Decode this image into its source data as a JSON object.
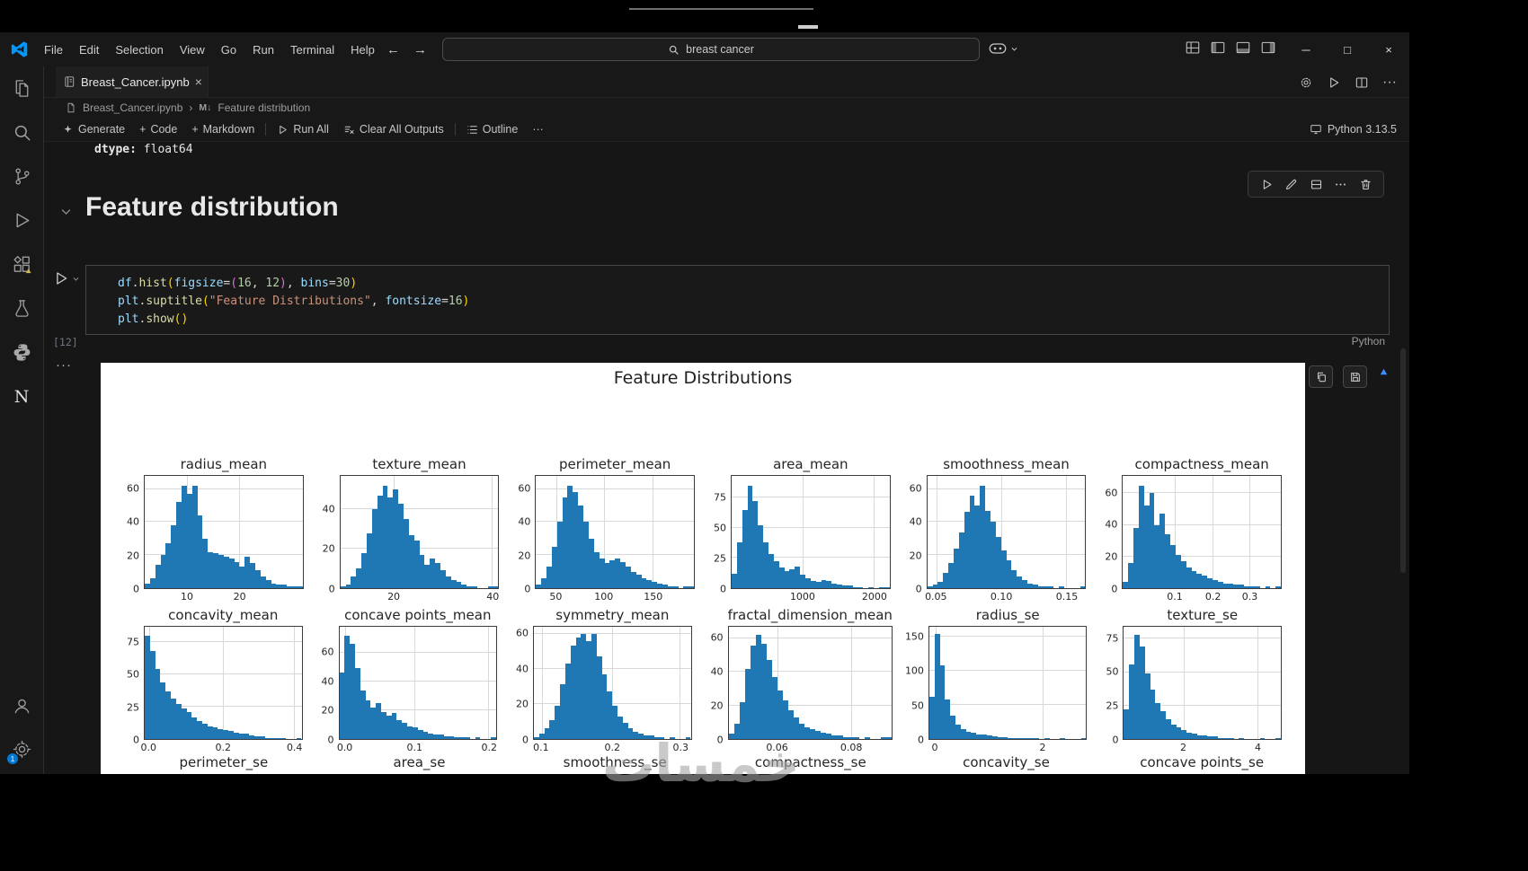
{
  "titlebar": {
    "menus": [
      "File",
      "Edit",
      "Selection",
      "View",
      "Go",
      "Run",
      "Terminal",
      "Help"
    ],
    "back": "←",
    "forward": "→",
    "search_value": "breast cancer",
    "window_controls": {
      "minimize": "─",
      "maximize": "□",
      "close": "×"
    }
  },
  "tabbar": {
    "tab_label": "Breast_Cancer.ipynb",
    "tab_close": "×",
    "more": "···"
  },
  "breadcrumb": {
    "file": "Breast_Cancer.ipynb",
    "separator": "›",
    "markdown_marker": "M↓",
    "section": "Feature distribution"
  },
  "notebook_toolbar": {
    "plus": "+",
    "generate": "Generate",
    "add_code": "Code",
    "add_markdown": "Markdown",
    "run_all": "Run All",
    "clear_outputs": "Clear All Outputs",
    "outline": "Outline",
    "more": "···",
    "kernel": "Python 3.13.5"
  },
  "previous_output": {
    "dtype_label": "dtype:",
    "dtype_value": " float64"
  },
  "markdown_cell": {
    "heading": "Feature distribution"
  },
  "code_cell": {
    "execution_count": "[12]",
    "language_label": "Python",
    "token_styles": {
      "v": "#9cdcfe",
      "f": "#dcdcaa",
      "n": "#b5cea8",
      "s": "#ce9178",
      "p": "#d4d4d4",
      "b1": "#ffd700",
      "b2": "#da70d6"
    },
    "lines": [
      [
        [
          "df",
          "v"
        ],
        [
          ".",
          "p"
        ],
        [
          "hist",
          "f"
        ],
        [
          "(",
          "b1"
        ],
        [
          "figsize",
          "v"
        ],
        [
          "=",
          "p"
        ],
        [
          "(",
          "b2"
        ],
        [
          "16",
          "n"
        ],
        [
          ", ",
          "p"
        ],
        [
          "12",
          "n"
        ],
        [
          ")",
          "b2"
        ],
        [
          ", ",
          "p"
        ],
        [
          "bins",
          "v"
        ],
        [
          "=",
          "p"
        ],
        [
          "30",
          "n"
        ],
        [
          ")",
          "b1"
        ]
      ],
      [
        [
          "plt",
          "v"
        ],
        [
          ".",
          "p"
        ],
        [
          "suptitle",
          "f"
        ],
        [
          "(",
          "b1"
        ],
        [
          "\"Feature Distributions\"",
          "s"
        ],
        [
          ", ",
          "p"
        ],
        [
          "fontsize",
          "v"
        ],
        [
          "=",
          "p"
        ],
        [
          "16",
          "n"
        ],
        [
          ")",
          "b1"
        ]
      ],
      [
        [
          "plt",
          "v"
        ],
        [
          ".",
          "p"
        ],
        [
          "show",
          "f"
        ],
        [
          "(",
          "b1"
        ],
        [
          ")",
          "b1"
        ]
      ]
    ]
  },
  "output": {
    "more": "···"
  },
  "watermark": "خمسات",
  "colors": {
    "accent_blue": "#0078d4",
    "histogram_bar": "#1f77b4",
    "editor_background": "#161616",
    "figure_background": "#ffffff"
  },
  "chart_data": {
    "type": "histogram",
    "title": "Feature Distributions",
    "grid": true,
    "bar_color": "#1f77b4",
    "layout": "6 columns x 2 full rows visible, third row cut off",
    "histograms": [
      {
        "title": "radius_mean",
        "ymax": 68,
        "yticks": [
          0,
          20,
          40,
          60
        ],
        "xticks": [
          {
            "label": "10",
            "pos": 0.27
          },
          {
            "label": "20",
            "pos": 0.6
          }
        ],
        "values": [
          3,
          6,
          14,
          20,
          27,
          38,
          52,
          62,
          57,
          62,
          44,
          30,
          22,
          21,
          20,
          19,
          18,
          16,
          13,
          19,
          15,
          11,
          7,
          5,
          3,
          2,
          2,
          1,
          1,
          1
        ]
      },
      {
        "title": "texture_mean",
        "ymax": 57,
        "yticks": [
          0,
          20,
          40
        ],
        "xticks": [
          {
            "label": "20",
            "pos": 0.34
          },
          {
            "label": "40",
            "pos": 0.96
          }
        ],
        "values": [
          1,
          2,
          6,
          10,
          18,
          28,
          40,
          47,
          52,
          46,
          50,
          43,
          35,
          27,
          24,
          17,
          12,
          15,
          13,
          9,
          6,
          4,
          3,
          2,
          1,
          1,
          0,
          0,
          1,
          1
        ]
      },
      {
        "title": "perimeter_mean",
        "ymax": 68,
        "yticks": [
          0,
          20,
          40,
          60
        ],
        "xticks": [
          {
            "label": "50",
            "pos": 0.13
          },
          {
            "label": "100",
            "pos": 0.43
          },
          {
            "label": "150",
            "pos": 0.74
          }
        ],
        "values": [
          2,
          6,
          13,
          25,
          40,
          55,
          62,
          58,
          50,
          40,
          30,
          22,
          18,
          15,
          17,
          18,
          16,
          13,
          10,
          8,
          6,
          5,
          4,
          3,
          2,
          1,
          1,
          0,
          1,
          1
        ]
      },
      {
        "title": "area_mean",
        "ymax": 93,
        "yticks": [
          0,
          25,
          50,
          75
        ],
        "xticks": [
          {
            "label": "1000",
            "pos": 0.45
          },
          {
            "label": "2000",
            "pos": 0.9
          }
        ],
        "values": [
          12,
          38,
          65,
          85,
          72,
          52,
          38,
          28,
          22,
          17,
          14,
          16,
          18,
          11,
          8,
          6,
          5,
          7,
          6,
          4,
          3,
          2,
          2,
          1,
          1,
          0,
          1,
          0,
          1,
          1
        ]
      },
      {
        "title": "smoothness_mean",
        "ymax": 68,
        "yticks": [
          0,
          20,
          40,
          60
        ],
        "xticks": [
          {
            "label": "0.05",
            "pos": 0.06
          },
          {
            "label": "0.10",
            "pos": 0.47
          },
          {
            "label": "0.15",
            "pos": 0.88
          }
        ],
        "values": [
          1,
          2,
          4,
          9,
          15,
          24,
          34,
          46,
          56,
          50,
          62,
          47,
          40,
          31,
          23,
          17,
          11,
          7,
          5,
          3,
          2,
          1,
          1,
          1,
          0,
          1,
          0,
          0,
          0,
          1
        ]
      },
      {
        "title": "compactness_mean",
        "ymax": 71,
        "yticks": [
          0,
          20,
          40,
          60
        ],
        "xticks": [
          {
            "label": "0.1",
            "pos": 0.33
          },
          {
            "label": "0.2",
            "pos": 0.57
          },
          {
            "label": "0.3",
            "pos": 0.8
          }
        ],
        "values": [
          4,
          16,
          38,
          65,
          52,
          60,
          40,
          47,
          34,
          27,
          21,
          17,
          13,
          11,
          9,
          8,
          6,
          5,
          4,
          3,
          3,
          2,
          2,
          1,
          1,
          1,
          0,
          1,
          0,
          1
        ]
      },
      {
        "title": "concavity_mean",
        "ymax": 87,
        "yticks": [
          0,
          25,
          50,
          75
        ],
        "xticks": [
          {
            "label": "0.0",
            "pos": 0.03
          },
          {
            "label": "0.2",
            "pos": 0.5
          },
          {
            "label": "0.4",
            "pos": 0.95
          }
        ],
        "values": [
          80,
          68,
          54,
          44,
          37,
          31,
          27,
          24,
          21,
          17,
          14,
          12,
          10,
          9,
          8,
          7,
          6,
          5,
          4,
          4,
          3,
          2,
          2,
          1,
          1,
          1,
          1,
          0,
          0,
          1
        ]
      },
      {
        "title": "concave points_mean",
        "ymax": 78,
        "yticks": [
          0,
          20,
          40,
          60
        ],
        "xticks": [
          {
            "label": "0.0",
            "pos": 0.04
          },
          {
            "label": "0.1",
            "pos": 0.48
          },
          {
            "label": "0.2",
            "pos": 0.95
          }
        ],
        "values": [
          46,
          72,
          66,
          49,
          34,
          27,
          22,
          25,
          19,
          16,
          18,
          13,
          11,
          9,
          8,
          6,
          5,
          4,
          3,
          3,
          2,
          2,
          1,
          1,
          1,
          0,
          1,
          0,
          0,
          1
        ]
      },
      {
        "title": "symmetry_mean",
        "ymax": 64,
        "yticks": [
          0,
          20,
          40,
          60
        ],
        "xticks": [
          {
            "label": "0.1",
            "pos": 0.05
          },
          {
            "label": "0.2",
            "pos": 0.5
          },
          {
            "label": "0.3",
            "pos": 0.93
          }
        ],
        "values": [
          1,
          3,
          6,
          11,
          19,
          31,
          43,
          53,
          58,
          60,
          56,
          60,
          47,
          37,
          27,
          19,
          13,
          9,
          6,
          4,
          3,
          2,
          2,
          1,
          1,
          0,
          1,
          0,
          0,
          1
        ]
      },
      {
        "title": "fractal_dimension_mean",
        "ymax": 67,
        "yticks": [
          0,
          20,
          40,
          60
        ],
        "xticks": [
          {
            "label": "0.06",
            "pos": 0.3
          },
          {
            "label": "0.08",
            "pos": 0.75
          }
        ],
        "values": [
          3,
          9,
          22,
          42,
          56,
          62,
          57,
          47,
          37,
          29,
          23,
          17,
          13,
          9,
          7,
          6,
          5,
          4,
          3,
          2,
          2,
          1,
          1,
          1,
          0,
          1,
          0,
          0,
          1,
          1
        ]
      },
      {
        "title": "radius_se",
        "ymax": 165,
        "yticks": [
          0,
          50,
          100,
          150
        ],
        "xticks": [
          {
            "label": "0",
            "pos": 0.04
          },
          {
            "label": "2",
            "pos": 0.72
          }
        ],
        "values": [
          62,
          155,
          108,
          58,
          34,
          21,
          14,
          11,
          9,
          7,
          6,
          5,
          4,
          3,
          3,
          2,
          2,
          1,
          1,
          1,
          1,
          0,
          1,
          0,
          0,
          1,
          0,
          0,
          0,
          1
        ]
      },
      {
        "title": "texture_se",
        "ymax": 84,
        "yticks": [
          0,
          25,
          50,
          75
        ],
        "xticks": [
          {
            "label": "2",
            "pos": 0.38
          },
          {
            "label": "4",
            "pos": 0.85
          }
        ],
        "values": [
          22,
          56,
          78,
          69,
          49,
          37,
          27,
          21,
          15,
          11,
          9,
          7,
          5,
          4,
          3,
          3,
          2,
          2,
          1,
          1,
          1,
          0,
          1,
          0,
          0,
          0,
          1,
          0,
          0,
          1
        ]
      }
    ],
    "partial_next_row_titles": [
      "perimeter_se",
      "area_se",
      "smoothness_se",
      "compactness_se",
      "concavity_se",
      "concave points_se"
    ]
  }
}
